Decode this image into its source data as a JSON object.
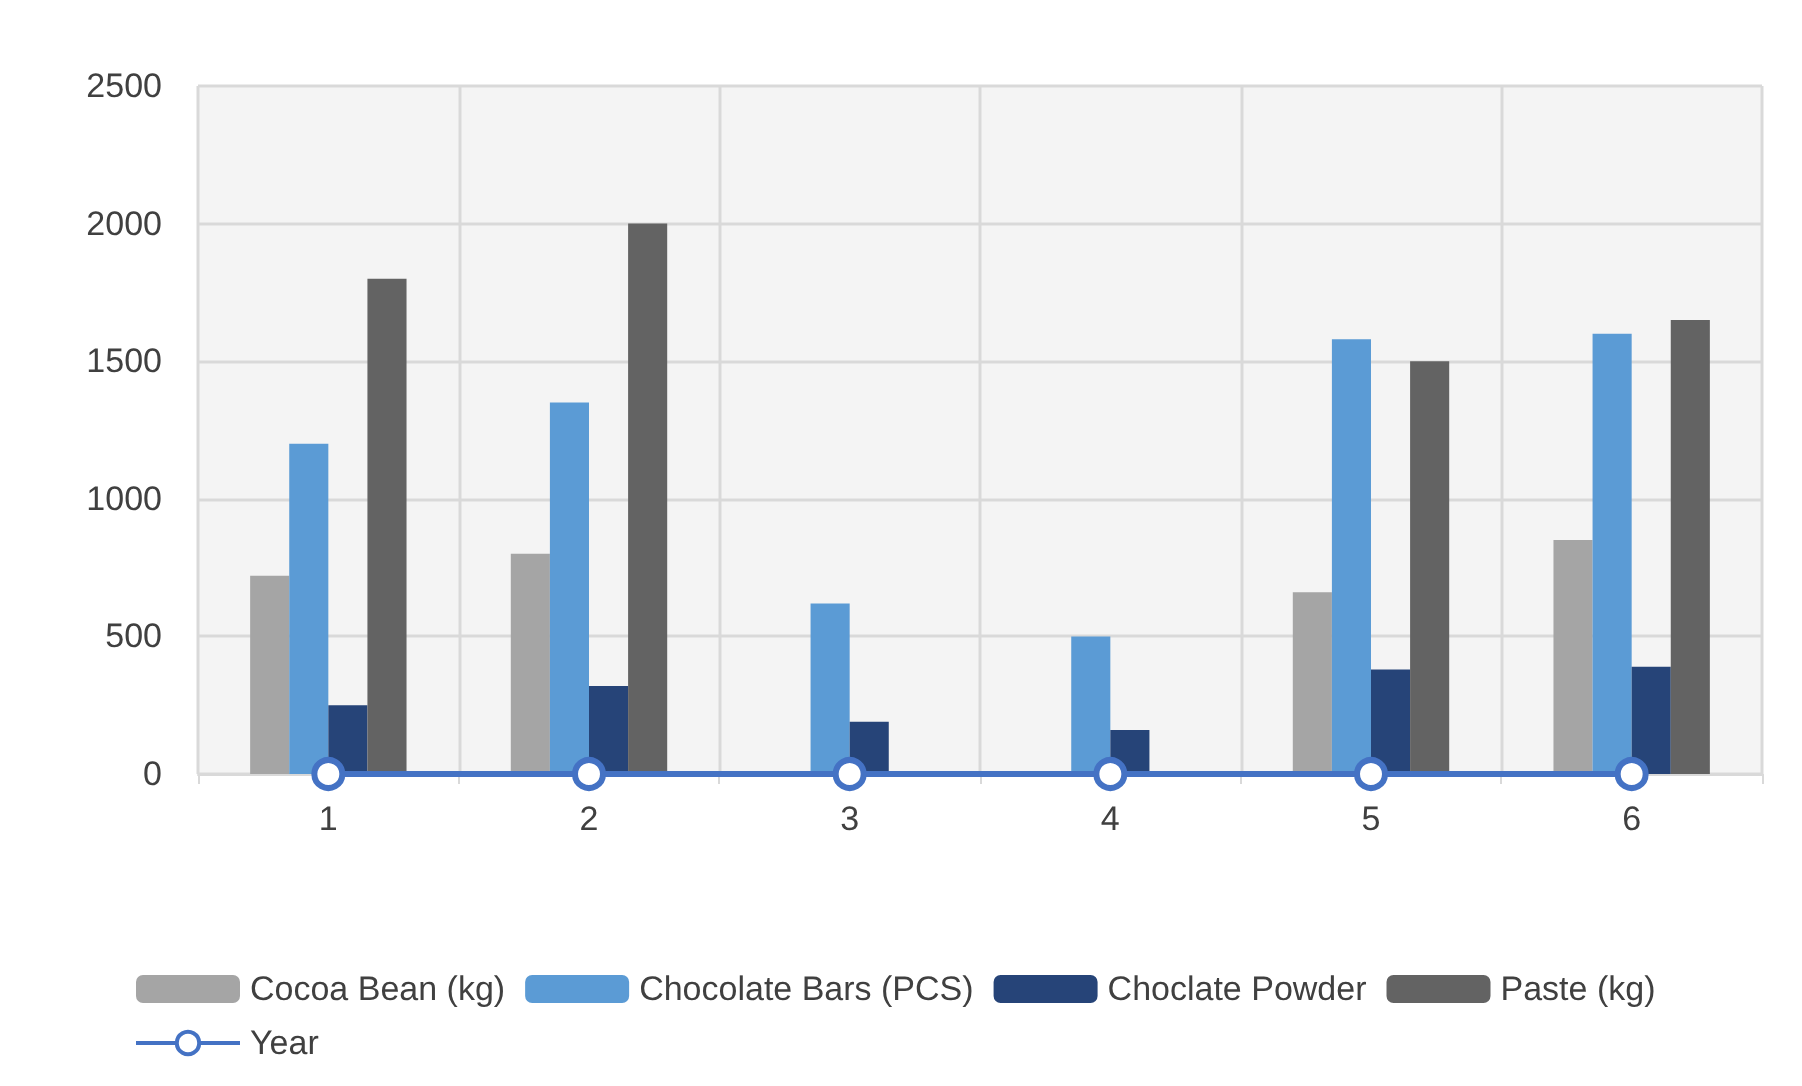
{
  "chart_data": {
    "type": "bar",
    "categories": [
      "1",
      "2",
      "3",
      "4",
      "5",
      "6"
    ],
    "series": [
      {
        "name": "Cocoa Bean (kg)",
        "color": "#a5a5a5",
        "values": [
          720,
          800,
          null,
          null,
          660,
          850
        ]
      },
      {
        "name": "Chocolate Bars (PCS)",
        "color": "#5b9bd5",
        "values": [
          1200,
          1350,
          620,
          500,
          1580,
          1600
        ]
      },
      {
        "name": "Choclate Powder",
        "color": "#264478",
        "values": [
          250,
          320,
          190,
          160,
          380,
          390
        ]
      },
      {
        "name": "Paste (kg)",
        "color": "#636363",
        "values": [
          1800,
          2000,
          null,
          null,
          1500,
          1650
        ]
      },
      {
        "name": "Year",
        "type": "line",
        "color": "#4472c4",
        "marker": "circle",
        "values": [
          0,
          0,
          0,
          0,
          0,
          0
        ]
      }
    ],
    "ylim": [
      0,
      2500
    ],
    "yticks": [
      0,
      500,
      1000,
      1500,
      2000,
      2500
    ],
    "grid": true,
    "legend": "bottom"
  }
}
